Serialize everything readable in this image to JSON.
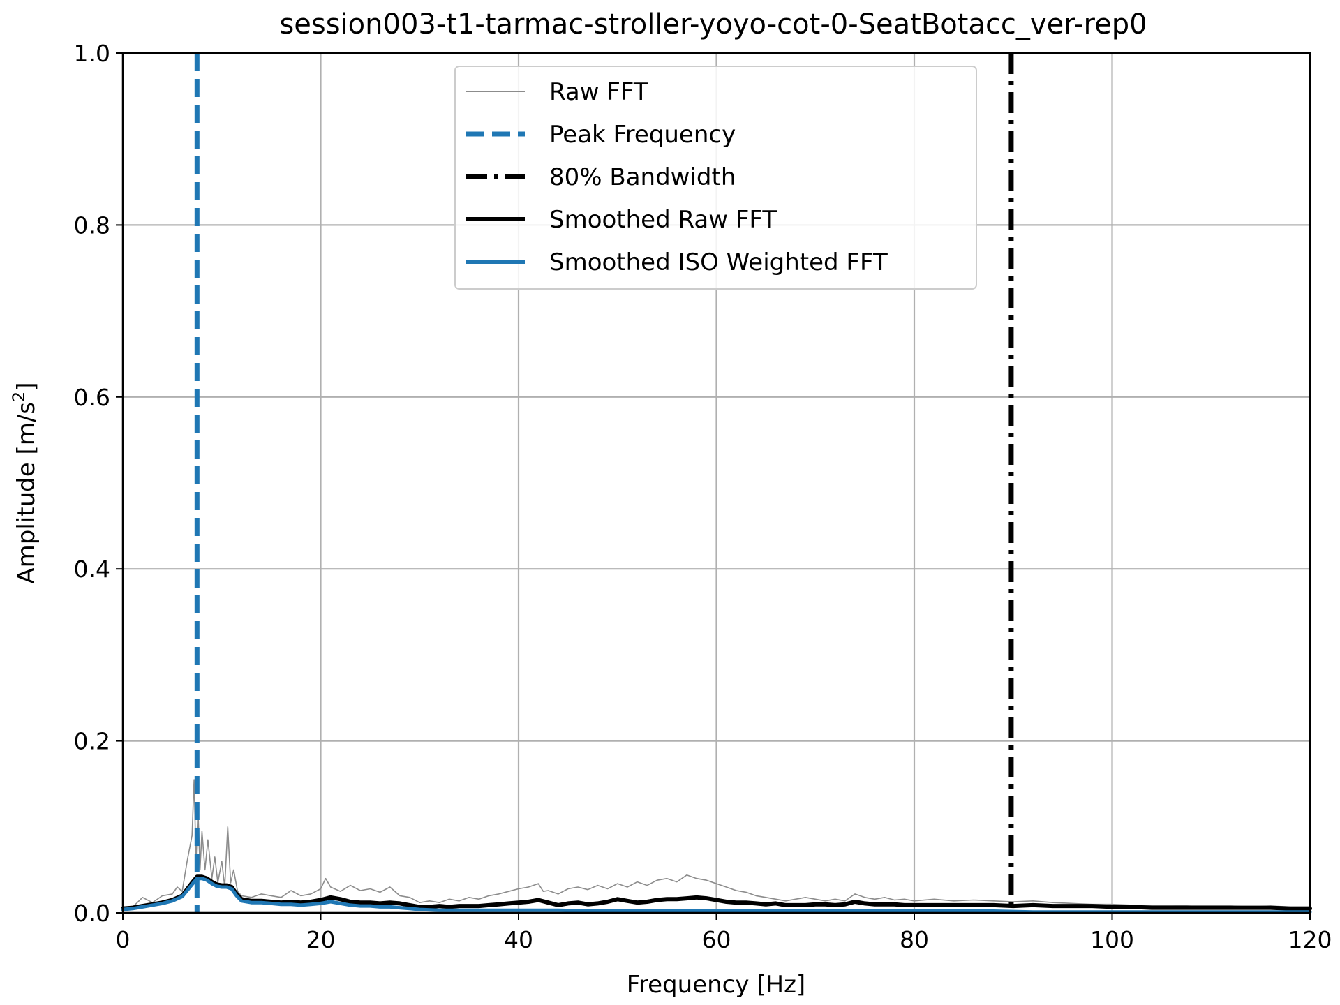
{
  "chart_data": {
    "type": "line",
    "title": "session003-t1-tarmac-stroller-yoyo-cot-0-SeatBotacc_ver-rep0",
    "xlabel": "Frequency [Hz]",
    "ylabel_main": "Amplitude [m/s",
    "ylabel_sup": "2",
    "ylabel_close": "]",
    "xlim": [
      0,
      120
    ],
    "ylim": [
      0,
      1.0
    ],
    "xticks": [
      0,
      20,
      40,
      60,
      80,
      100,
      120
    ],
    "xtick_labels": [
      "0",
      "20",
      "40",
      "60",
      "80",
      "100",
      "120"
    ],
    "yticks": [
      0.0,
      0.2,
      0.4,
      0.6,
      0.8,
      1.0
    ],
    "ytick_labels": [
      "0.0",
      "0.2",
      "0.4",
      "0.6",
      "0.8",
      "1.0"
    ],
    "grid": true,
    "legend_position": "top-center",
    "colors": {
      "raw": "#8c8c8c",
      "peak": "#1f77b4",
      "bandwidth": "#000000",
      "smoothed_raw": "#000000",
      "smoothed_iso": "#1f77b4"
    },
    "series": [
      {
        "name": "Raw FFT",
        "style": "thin-solid",
        "x": [
          0,
          1,
          2,
          3,
          4,
          5,
          5.5,
          6,
          6.5,
          7,
          7.2,
          7.4,
          7.6,
          7.8,
          8,
          8.3,
          8.6,
          9,
          9.3,
          9.6,
          10,
          10.3,
          10.6,
          10.9,
          11.2,
          11.6,
          12,
          13,
          14,
          15,
          16,
          17,
          18,
          19,
          20,
          20.5,
          21,
          22,
          23,
          24,
          25,
          26,
          27,
          28,
          29,
          30,
          31,
          32,
          33,
          34,
          35,
          36,
          37,
          38,
          39,
          40,
          41,
          42,
          42.5,
          43,
          44,
          45,
          46,
          47,
          48,
          49,
          50,
          51,
          52,
          53,
          54,
          55,
          56,
          57,
          58,
          59,
          60,
          61,
          62,
          63,
          64,
          65,
          66,
          67,
          68,
          69,
          70,
          71,
          72,
          73,
          74,
          75,
          76,
          77,
          78,
          79,
          80,
          82,
          84,
          86,
          88,
          90,
          92,
          94,
          96,
          98,
          100,
          102,
          104,
          106,
          108,
          110,
          112,
          114,
          116,
          118,
          120
        ],
        "y": [
          0.005,
          0.007,
          0.018,
          0.012,
          0.02,
          0.022,
          0.03,
          0.025,
          0.06,
          0.09,
          0.155,
          0.06,
          0.12,
          0.05,
          0.095,
          0.05,
          0.085,
          0.04,
          0.065,
          0.035,
          0.06,
          0.03,
          0.1,
          0.035,
          0.05,
          0.025,
          0.02,
          0.018,
          0.022,
          0.02,
          0.018,
          0.026,
          0.02,
          0.022,
          0.028,
          0.04,
          0.03,
          0.025,
          0.032,
          0.026,
          0.028,
          0.024,
          0.03,
          0.02,
          0.018,
          0.012,
          0.014,
          0.012,
          0.016,
          0.014,
          0.018,
          0.016,
          0.02,
          0.022,
          0.025,
          0.028,
          0.03,
          0.034,
          0.025,
          0.026,
          0.022,
          0.028,
          0.03,
          0.027,
          0.032,
          0.028,
          0.034,
          0.03,
          0.036,
          0.032,
          0.038,
          0.04,
          0.036,
          0.044,
          0.04,
          0.038,
          0.034,
          0.03,
          0.026,
          0.024,
          0.02,
          0.018,
          0.016,
          0.014,
          0.016,
          0.018,
          0.016,
          0.014,
          0.016,
          0.014,
          0.022,
          0.018,
          0.016,
          0.018,
          0.015,
          0.016,
          0.014,
          0.016,
          0.014,
          0.015,
          0.014,
          0.013,
          0.014,
          0.012,
          0.011,
          0.01,
          0.01,
          0.009,
          0.009,
          0.009,
          0.008,
          0.008,
          0.008,
          0.007,
          0.008,
          0.007,
          0.007
        ]
      },
      {
        "name": "Smoothed Raw FFT",
        "style": "thick-solid",
        "x": [
          0,
          1,
          2,
          3,
          4,
          5,
          6,
          7,
          7.5,
          8,
          8.5,
          9,
          9.5,
          10,
          10.5,
          11,
          11.5,
          12,
          13,
          14,
          15,
          16,
          17,
          18,
          19,
          20,
          21,
          22,
          23,
          24,
          25,
          26,
          27,
          28,
          29,
          30,
          31,
          32,
          33,
          34,
          35,
          36,
          37,
          38,
          39,
          40,
          41,
          42,
          43,
          44,
          45,
          46,
          47,
          48,
          49,
          50,
          51,
          52,
          53,
          54,
          55,
          56,
          57,
          58,
          59,
          60,
          61,
          62,
          63,
          64,
          65,
          66,
          67,
          68,
          69,
          70,
          71,
          72,
          73,
          74,
          75,
          76,
          77,
          78,
          79,
          80,
          82,
          84,
          86,
          88,
          90,
          92,
          94,
          96,
          98,
          100,
          102,
          104,
          106,
          108,
          110,
          112,
          114,
          116,
          118,
          120
        ],
        "y": [
          0.005,
          0.006,
          0.008,
          0.01,
          0.012,
          0.015,
          0.02,
          0.035,
          0.042,
          0.042,
          0.04,
          0.036,
          0.033,
          0.032,
          0.032,
          0.03,
          0.022,
          0.016,
          0.014,
          0.014,
          0.013,
          0.012,
          0.013,
          0.012,
          0.013,
          0.015,
          0.018,
          0.016,
          0.013,
          0.012,
          0.012,
          0.011,
          0.012,
          0.011,
          0.009,
          0.007,
          0.007,
          0.008,
          0.007,
          0.008,
          0.008,
          0.008,
          0.009,
          0.01,
          0.011,
          0.012,
          0.013,
          0.015,
          0.012,
          0.009,
          0.011,
          0.012,
          0.01,
          0.011,
          0.013,
          0.016,
          0.014,
          0.012,
          0.013,
          0.015,
          0.016,
          0.016,
          0.017,
          0.018,
          0.017,
          0.015,
          0.013,
          0.012,
          0.012,
          0.011,
          0.01,
          0.011,
          0.009,
          0.009,
          0.009,
          0.01,
          0.01,
          0.009,
          0.01,
          0.013,
          0.011,
          0.01,
          0.01,
          0.01,
          0.009,
          0.009,
          0.009,
          0.009,
          0.009,
          0.009,
          0.008,
          0.009,
          0.008,
          0.008,
          0.008,
          0.007,
          0.007,
          0.006,
          0.006,
          0.006,
          0.006,
          0.006,
          0.006,
          0.006,
          0.005,
          0.005
        ]
      },
      {
        "name": "Smoothed ISO Weighted FFT",
        "style": "thick-solid",
        "x": [
          0,
          1,
          2,
          3,
          4,
          5,
          6,
          7,
          7.5,
          8,
          8.5,
          9,
          9.5,
          10,
          10.5,
          11,
          11.5,
          12,
          13,
          14,
          15,
          16,
          17,
          18,
          19,
          20,
          21,
          22,
          23,
          24,
          25,
          26,
          27,
          28,
          29,
          30,
          32,
          34,
          36,
          38,
          40,
          44,
          48,
          52,
          56,
          60,
          64,
          68,
          72,
          76,
          80,
          84,
          88,
          92,
          96,
          100,
          104,
          108,
          112,
          116,
          120
        ],
        "y": [
          0.004,
          0.005,
          0.007,
          0.009,
          0.011,
          0.014,
          0.019,
          0.033,
          0.04,
          0.04,
          0.038,
          0.034,
          0.031,
          0.03,
          0.03,
          0.028,
          0.02,
          0.014,
          0.012,
          0.012,
          0.011,
          0.01,
          0.01,
          0.009,
          0.01,
          0.011,
          0.013,
          0.011,
          0.009,
          0.008,
          0.008,
          0.007,
          0.007,
          0.006,
          0.005,
          0.004,
          0.003,
          0.003,
          0.003,
          0.003,
          0.003,
          0.003,
          0.002,
          0.002,
          0.002,
          0.002,
          0.002,
          0.002,
          0.002,
          0.002,
          0.002,
          0.002,
          0.002,
          0.001,
          0.001,
          0.001,
          0.001,
          0.001,
          0.001,
          0.001,
          0.001
        ]
      }
    ],
    "vlines": [
      {
        "name": "Peak Frequency",
        "x": 7.5,
        "style": "dashed"
      },
      {
        "name": "80% Bandwidth",
        "x": 89.8,
        "style": "dash-dot"
      }
    ],
    "legend": [
      {
        "label": "Raw FFT",
        "key": "raw"
      },
      {
        "label": "Peak Frequency",
        "key": "peak"
      },
      {
        "label": "80% Bandwidth",
        "key": "bandwidth"
      },
      {
        "label": "Smoothed Raw FFT",
        "key": "smoothed_raw"
      },
      {
        "label": "Smoothed ISO Weighted FFT",
        "key": "smoothed_iso"
      }
    ]
  }
}
